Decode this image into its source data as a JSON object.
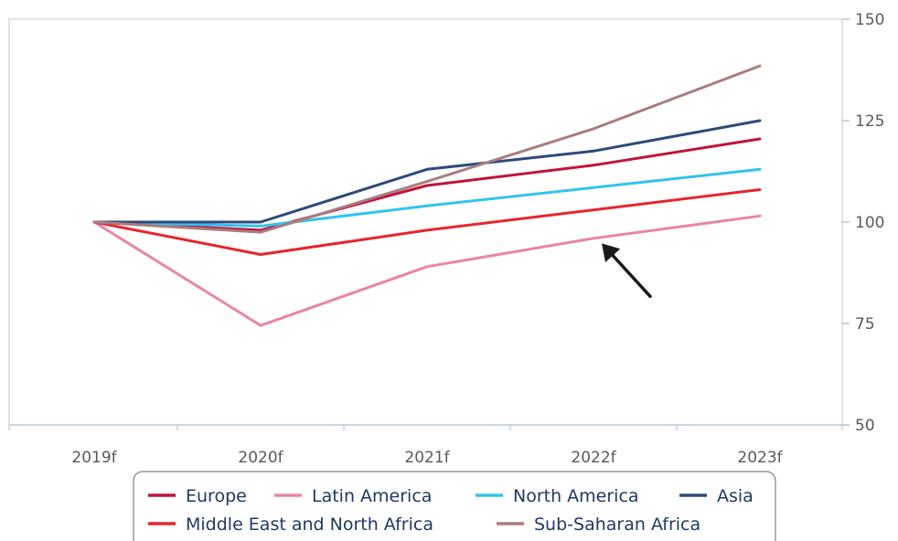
{
  "chart_data": {
    "type": "line",
    "title": "",
    "xlabel": "",
    "ylabel": "",
    "categories": [
      "2019f",
      "2020f",
      "2021f",
      "2022f",
      "2023f"
    ],
    "ylim": [
      50,
      150
    ],
    "y_ticks": [
      50,
      75,
      100,
      125,
      150
    ],
    "y_axis_side": "right",
    "grid": false,
    "legend_position": "bottom",
    "series": [
      {
        "name": "Europe",
        "color": "#c0143c",
        "values": [
          100,
          98,
          109,
          114,
          120.5
        ]
      },
      {
        "name": "Latin America",
        "color": "#e886a6",
        "values": [
          100,
          74.5,
          89,
          96,
          101.5
        ]
      },
      {
        "name": "North America",
        "color": "#33c3ee",
        "values": [
          100,
          99,
          104,
          108.5,
          113
        ]
      },
      {
        "name": "Asia",
        "color": "#2e4a7a",
        "values": [
          100,
          100,
          113,
          117.5,
          125
        ]
      },
      {
        "name": "Middle East and North Africa",
        "color": "#e6262c",
        "values": [
          100,
          92,
          98,
          103,
          108
        ]
      },
      {
        "name": "Sub-Saharan Africa",
        "color": "#a87d80",
        "values": [
          100,
          97.5,
          110,
          123,
          138.5
        ]
      }
    ],
    "annotations": [
      {
        "type": "arrow",
        "color": "#1a1a1a",
        "points_to": {
          "category": "2022f",
          "value": 97
        }
      }
    ]
  }
}
